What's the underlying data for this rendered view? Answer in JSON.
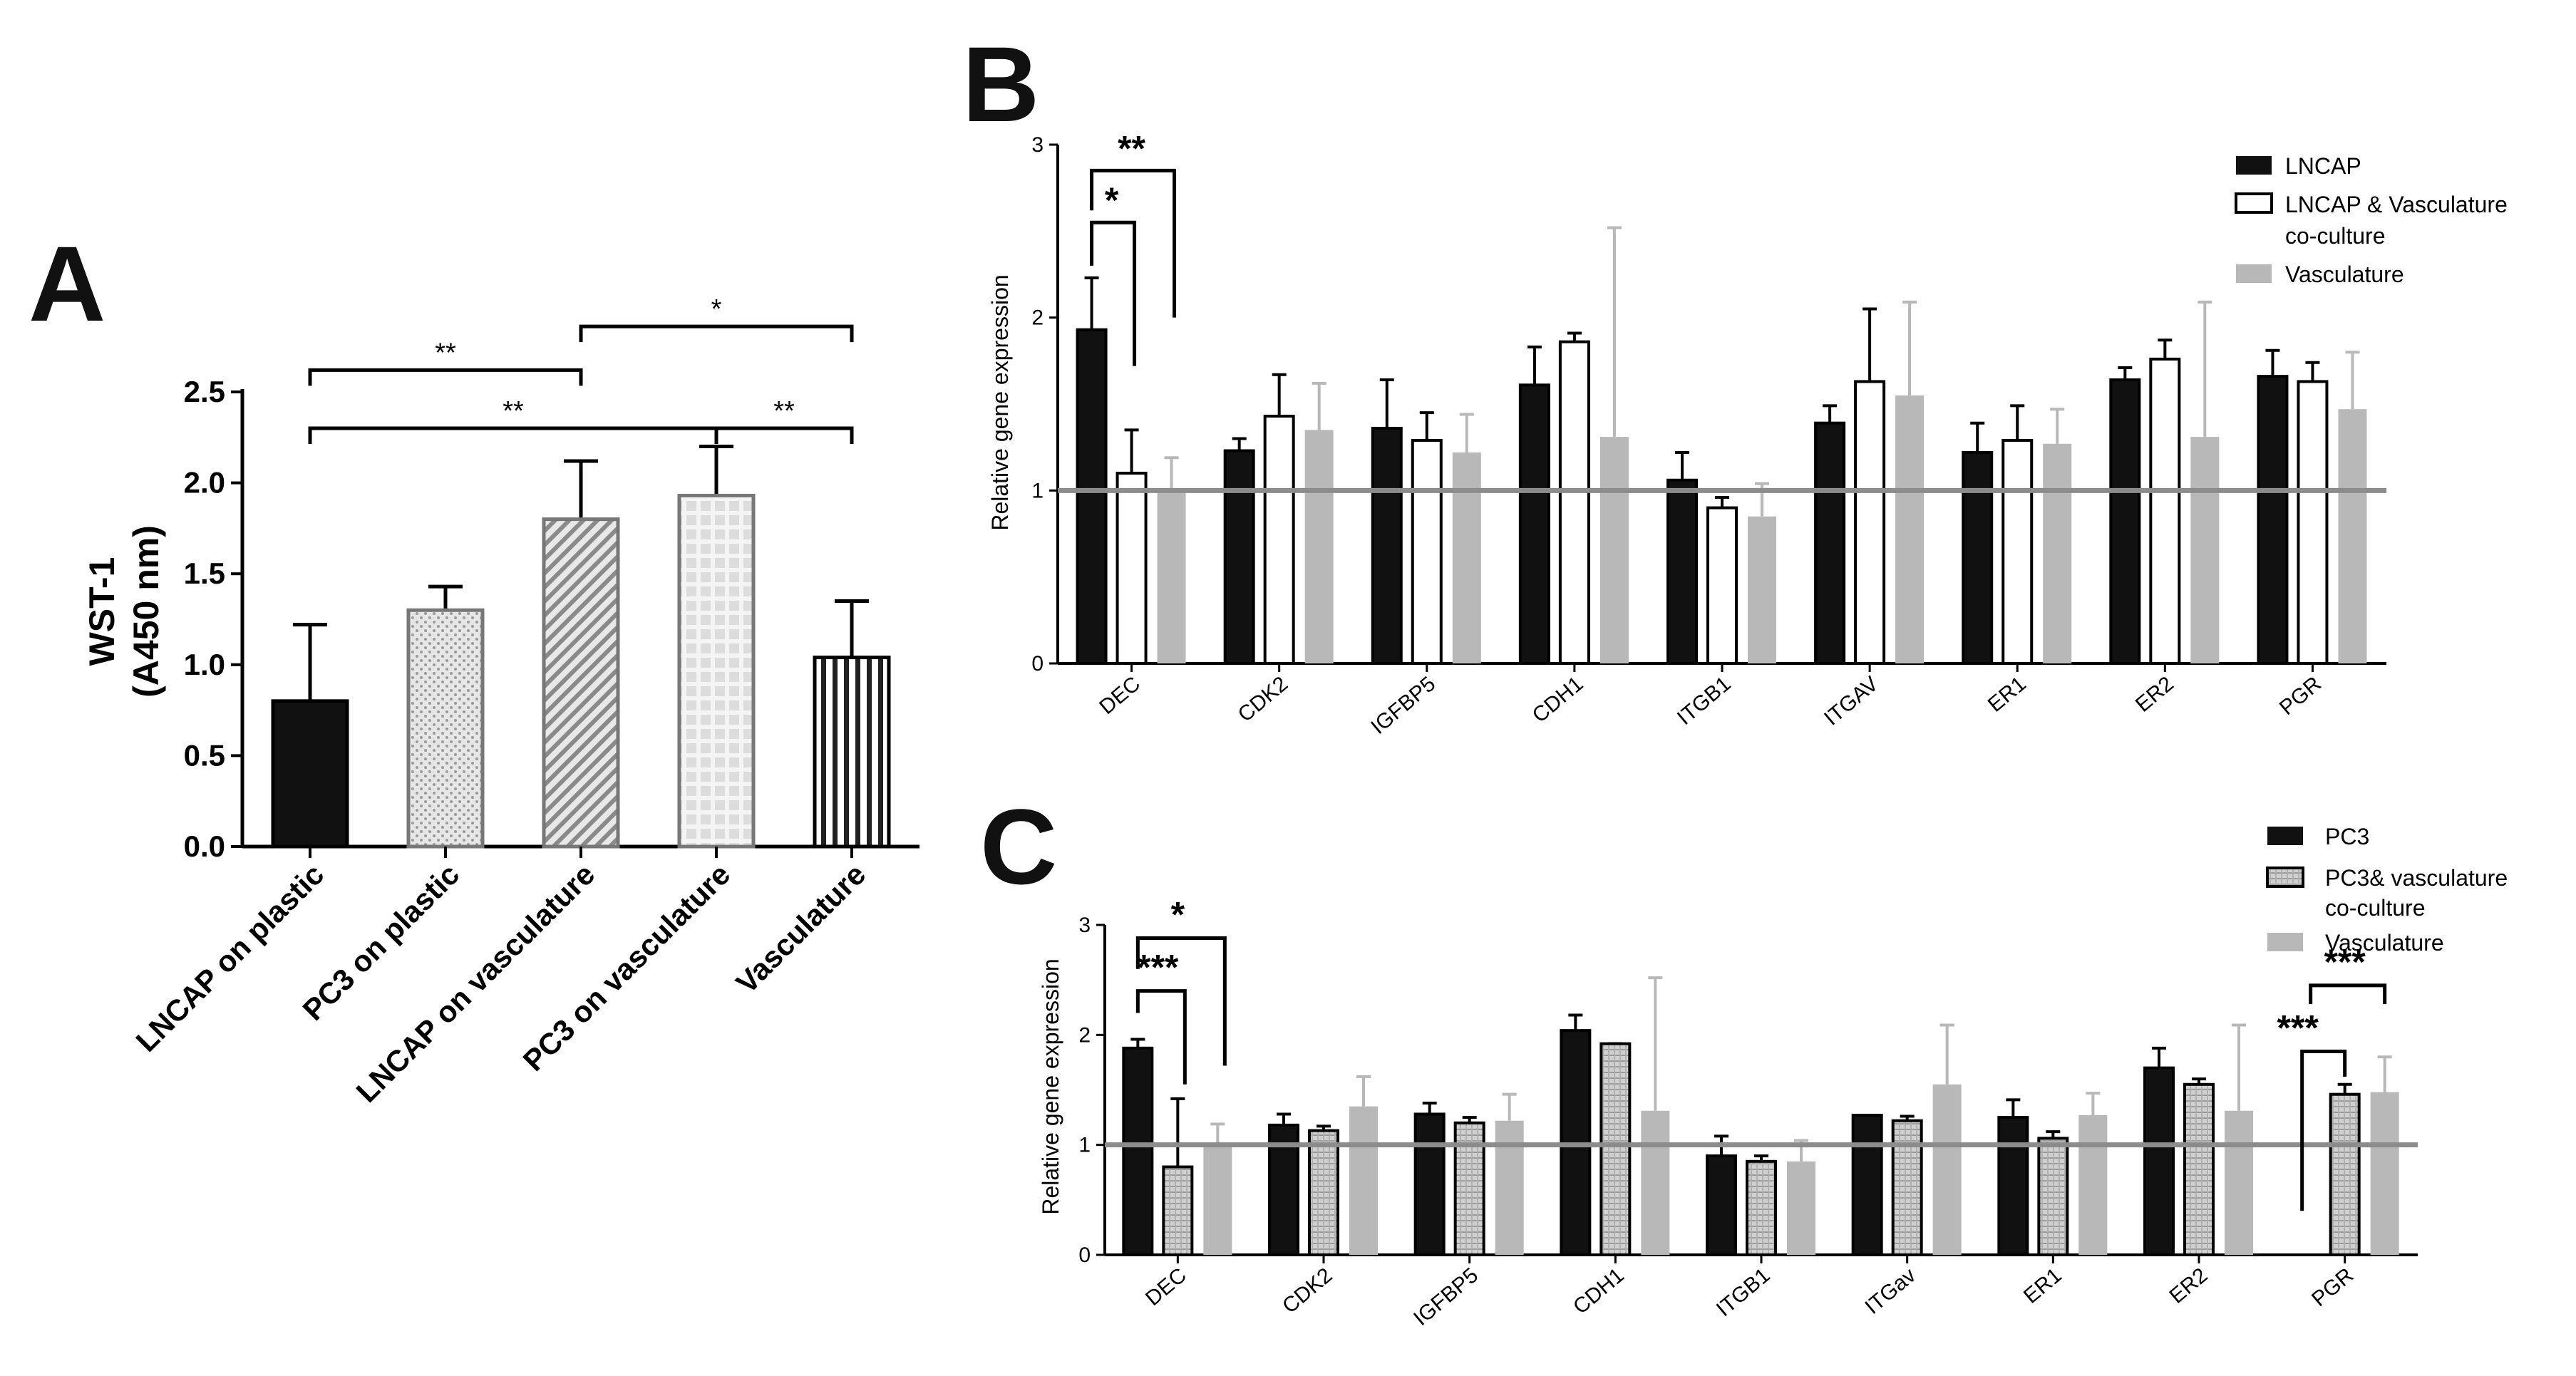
{
  "colors": {
    "black": "#111111",
    "white_bar": "#ffffff",
    "gray_bar": "#b8b8b8",
    "hatched_gray": "#c8c8c8",
    "reference_line": "#909090"
  },
  "chart_data": [
    {
      "panel": "A",
      "type": "bar",
      "ylabel_line1": "WST-1",
      "ylabel_line2": "(A450 nm)",
      "ylim": [
        0,
        2.5
      ],
      "yticks": [
        "0.0",
        "0.5",
        "1.0",
        "1.5",
        "2.0",
        "2.5"
      ],
      "ytick_values": [
        0,
        0.5,
        1.0,
        1.5,
        2.0,
        2.5
      ],
      "categories": [
        "LNCAP on plastic",
        "PC3 on plastic",
        "LNCAP on vasculature",
        "PC3 on vasculature",
        "Vasculature"
      ],
      "values": [
        0.8,
        1.3,
        1.8,
        1.93,
        1.04
      ],
      "errors": [
        0.42,
        0.13,
        0.32,
        0.27,
        0.31
      ],
      "patterns": [
        "solid",
        "dots",
        "diagonal",
        "grid",
        "vertical"
      ],
      "significance": [
        {
          "from": 0,
          "to": 2,
          "label": "**",
          "y": 2.62
        },
        {
          "from": 0,
          "to": 3,
          "label": "**",
          "y": 2.3
        },
        {
          "from": 2,
          "to": 4,
          "label": "*",
          "y": 2.86
        },
        {
          "from": 3,
          "to": 4,
          "label": "**",
          "y": 2.3
        }
      ]
    },
    {
      "panel": "B",
      "type": "bar",
      "ylabel": "Relative gene expression",
      "ylim": [
        0,
        3
      ],
      "yticks": [
        "0",
        "1",
        "2",
        "3"
      ],
      "ytick_values": [
        0,
        1,
        2,
        3
      ],
      "reference_line": 1,
      "categories": [
        "DEC",
        "CDK2",
        "IGFBP5",
        "CDH1",
        "ITGB1",
        "ITGAV",
        "ER1",
        "ER2",
        "PGR"
      ],
      "series": [
        {
          "name": "LNCAP",
          "style": "black",
          "values": [
            1.93,
            1.23,
            1.36,
            1.61,
            1.06,
            1.39,
            1.22,
            1.64,
            1.66
          ],
          "errors": [
            0.3,
            0.07,
            0.28,
            0.22,
            0.16,
            0.1,
            0.17,
            0.07,
            0.15
          ]
        },
        {
          "name": "LNCAP & Vasculature co-culture",
          "style": "white",
          "values": [
            1.1,
            1.43,
            1.29,
            1.86,
            0.9,
            1.63,
            1.29,
            1.76,
            1.63
          ],
          "errors": [
            0.25,
            0.24,
            0.16,
            0.05,
            0.06,
            0.42,
            0.2,
            0.11,
            0.11
          ]
        },
        {
          "name": "Vasculature",
          "style": "gray",
          "values": [
            1.01,
            1.35,
            1.22,
            1.31,
            0.85,
            1.55,
            1.27,
            1.31,
            1.47
          ],
          "errors": [
            0.18,
            0.27,
            0.22,
            1.21,
            0.19,
            0.54,
            0.2,
            0.78,
            0.33
          ]
        }
      ],
      "legend": [
        "LNCAP",
        "LNCAP & Vasculature",
        "co-culture",
        "Vasculature"
      ],
      "significance": [
        {
          "label": "*",
          "y": 2.55
        },
        {
          "label": "**",
          "y": 2.85
        }
      ]
    },
    {
      "panel": "C",
      "type": "bar",
      "ylabel": "Relative gene expression",
      "ylim": [
        0,
        3
      ],
      "yticks": [
        "0",
        "1",
        "2",
        "3"
      ],
      "ytick_values": [
        0,
        1,
        2,
        3
      ],
      "reference_line": 1,
      "categories": [
        "DEC",
        "CDK2",
        "IGFBP5",
        "CDH1",
        "ITGB1",
        "ITGav",
        "ER1",
        "ER2",
        "PGR"
      ],
      "series": [
        {
          "name": "PC3",
          "style": "black",
          "values": [
            1.88,
            1.18,
            1.28,
            2.04,
            0.9,
            1.27,
            1.25,
            1.7,
            null
          ],
          "errors": [
            0.08,
            0.1,
            0.1,
            0.14,
            0.18,
            0.0,
            0.16,
            0.18,
            null
          ]
        },
        {
          "name": "PC3& vasculature co-culture",
          "style": "hatched",
          "values": [
            0.8,
            1.13,
            1.2,
            1.92,
            0.85,
            1.22,
            1.06,
            1.55,
            1.46
          ],
          "errors": [
            0.62,
            0.04,
            0.05,
            0.0,
            0.05,
            0.04,
            0.06,
            0.05,
            0.09
          ]
        },
        {
          "name": "Vasculature",
          "style": "gray",
          "values": [
            1.01,
            1.35,
            1.22,
            1.31,
            0.85,
            1.55,
            1.27,
            1.31,
            1.48
          ],
          "errors": [
            0.18,
            0.27,
            0.24,
            1.21,
            0.19,
            0.54,
            0.2,
            0.78,
            0.32
          ]
        }
      ],
      "legend": [
        "PC3",
        "PC3& vasculature",
        "co-culture",
        "Vasculature"
      ],
      "significance": [
        {
          "label": "*",
          "group": "DEC"
        },
        {
          "label": "***",
          "group": "DEC"
        },
        {
          "label": "***",
          "group": "PGR"
        },
        {
          "label": "***",
          "group": "PGR"
        }
      ]
    }
  ],
  "panel_labels": [
    "A",
    "B",
    "C"
  ]
}
